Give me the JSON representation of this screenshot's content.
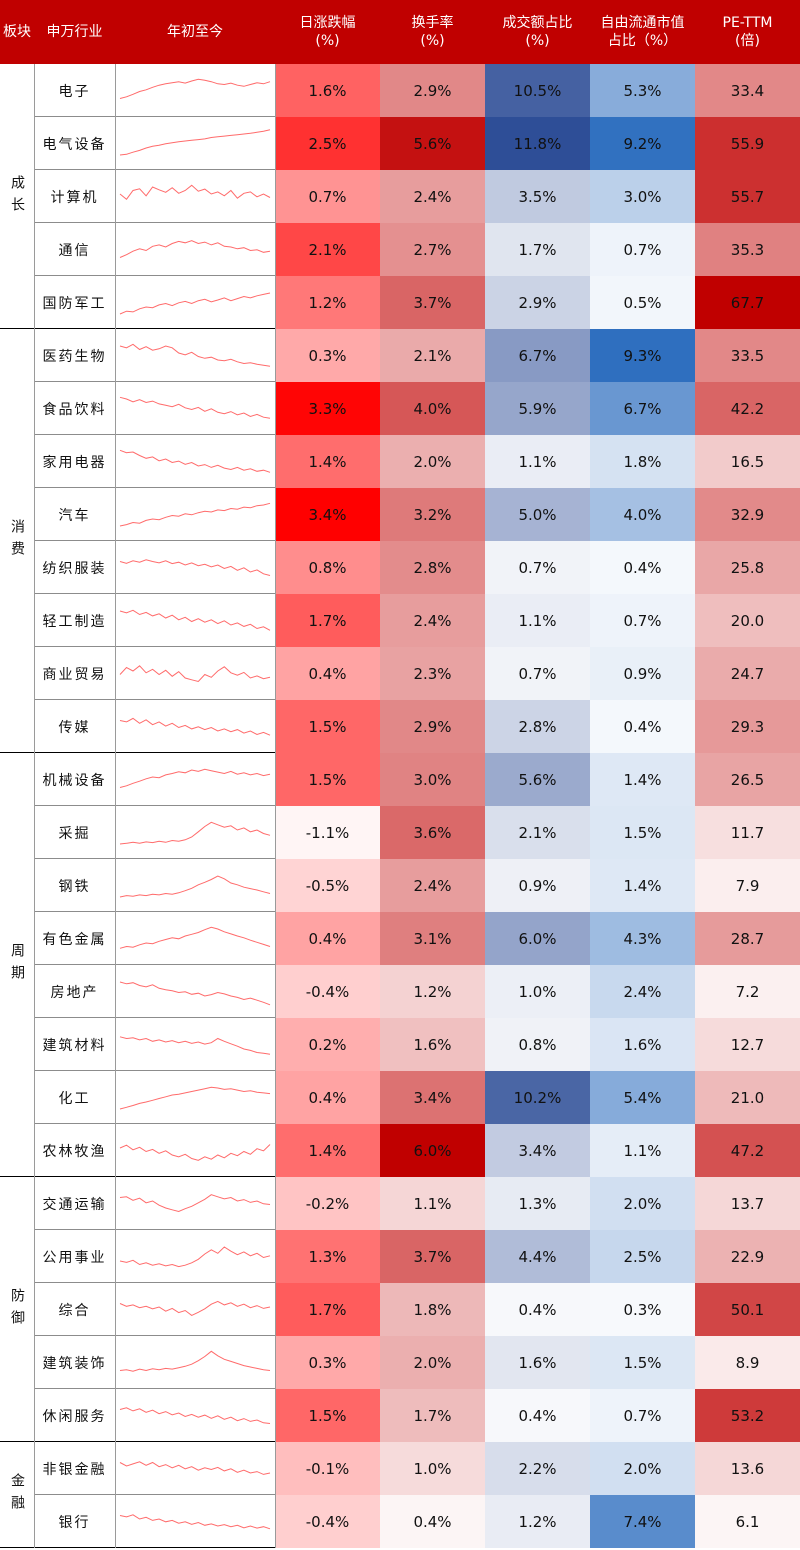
{
  "headers": {
    "section": "板块",
    "industry": "申万行业",
    "trend": "年初至今",
    "change_l1": "日涨跌幅",
    "change_l2": "(%)",
    "turnover_l1": "换手率",
    "turnover_l2": "(%)",
    "volume_l1": "成交额占比",
    "volume_l2": "(%)",
    "float_l1": "自由流通市值",
    "float_l2": "占比（%）",
    "pe_l1": "PE-TTM",
    "pe_l2": "(倍)"
  },
  "colors": {
    "header_bg": "#c00000",
    "red_max": "#ff0000",
    "red_dark": "#c00000",
    "blue_max": "#2f6fbf",
    "blue_dark": "#2e4e97",
    "sparkline": "#ff6b6b"
  },
  "sections": [
    {
      "name": "成长",
      "rows": 5
    },
    {
      "name": "消费",
      "rows": 8
    },
    {
      "name": "周期",
      "rows": 8
    },
    {
      "name": "防御",
      "rows": 5
    },
    {
      "name": "金融",
      "rows": 2
    }
  ],
  "chart_data": {
    "type": "table",
    "columns": [
      "日涨跌幅(%)",
      "换手率(%)",
      "成交额占比(%)",
      "自由流通市值占比（%）",
      "PE-TTM(倍)"
    ],
    "rows": [
      {
        "industry": "电子",
        "section": "成长",
        "change": "1.6%",
        "turnover": "2.9%",
        "volume_share": "10.5%",
        "float_share": "5.3%",
        "pe": "33.4",
        "trend": [
          0.3,
          0.35,
          0.42,
          0.5,
          0.55,
          0.62,
          0.68,
          0.72,
          0.75,
          0.78,
          0.74,
          0.8,
          0.85,
          0.82,
          0.78,
          0.72,
          0.7,
          0.74,
          0.68,
          0.65,
          0.7,
          0.75,
          0.72,
          0.78
        ]
      },
      {
        "industry": "电气设备",
        "section": "成长",
        "change": "2.5%",
        "turnover": "5.6%",
        "volume_share": "11.8%",
        "float_share": "9.2%",
        "pe": "55.9",
        "trend": [
          0.2,
          0.22,
          0.28,
          0.33,
          0.4,
          0.45,
          0.48,
          0.52,
          0.55,
          0.58,
          0.6,
          0.62,
          0.64,
          0.66,
          0.7,
          0.72,
          0.74,
          0.76,
          0.78,
          0.8,
          0.82,
          0.85,
          0.88,
          0.92
        ]
      },
      {
        "industry": "计算机",
        "section": "成长",
        "change": "0.7%",
        "turnover": "2.4%",
        "volume_share": "3.5%",
        "float_share": "3.0%",
        "pe": "55.7",
        "trend": [
          0.6,
          0.45,
          0.7,
          0.75,
          0.55,
          0.8,
          0.72,
          0.65,
          0.78,
          0.62,
          0.7,
          0.85,
          0.68,
          0.74,
          0.6,
          0.66,
          0.55,
          0.7,
          0.48,
          0.62,
          0.66,
          0.52,
          0.6,
          0.5
        ]
      },
      {
        "industry": "通信",
        "section": "成长",
        "change": "2.1%",
        "turnover": "2.7%",
        "volume_share": "1.7%",
        "float_share": "0.7%",
        "pe": "35.3",
        "trend": [
          0.3,
          0.38,
          0.48,
          0.55,
          0.5,
          0.62,
          0.66,
          0.6,
          0.7,
          0.76,
          0.72,
          0.78,
          0.7,
          0.74,
          0.66,
          0.72,
          0.62,
          0.6,
          0.55,
          0.58,
          0.5,
          0.52,
          0.45,
          0.48
        ]
      },
      {
        "industry": "国防军工",
        "section": "成长",
        "change": "1.2%",
        "turnover": "3.7%",
        "volume_share": "2.9%",
        "float_share": "0.5%",
        "pe": "67.7",
        "trend": [
          0.2,
          0.28,
          0.26,
          0.35,
          0.4,
          0.38,
          0.46,
          0.5,
          0.44,
          0.52,
          0.56,
          0.5,
          0.58,
          0.62,
          0.55,
          0.6,
          0.66,
          0.58,
          0.64,
          0.7,
          0.66,
          0.72,
          0.76,
          0.8
        ]
      },
      {
        "industry": "医药生物",
        "section": "消费",
        "change": "0.3%",
        "turnover": "2.1%",
        "volume_share": "6.7%",
        "float_share": "9.3%",
        "pe": "33.5",
        "trend": [
          0.8,
          0.75,
          0.85,
          0.7,
          0.78,
          0.68,
          0.72,
          0.8,
          0.75,
          0.6,
          0.55,
          0.62,
          0.5,
          0.45,
          0.48,
          0.4,
          0.38,
          0.42,
          0.35,
          0.3,
          0.32,
          0.28,
          0.25,
          0.22
        ]
      },
      {
        "industry": "食品饮料",
        "section": "消费",
        "change": "3.3%",
        "turnover": "4.0%",
        "volume_share": "5.9%",
        "float_share": "6.7%",
        "pe": "42.2",
        "trend": [
          0.85,
          0.8,
          0.72,
          0.78,
          0.7,
          0.74,
          0.66,
          0.62,
          0.58,
          0.65,
          0.55,
          0.5,
          0.56,
          0.45,
          0.52,
          0.42,
          0.38,
          0.44,
          0.35,
          0.4,
          0.3,
          0.36,
          0.28,
          0.25
        ]
      },
      {
        "industry": "家用电器",
        "section": "消费",
        "change": "1.4%",
        "turnover": "2.0%",
        "volume_share": "1.1%",
        "float_share": "1.8%",
        "pe": "16.5",
        "trend": [
          0.85,
          0.78,
          0.8,
          0.7,
          0.62,
          0.66,
          0.55,
          0.6,
          0.5,
          0.54,
          0.45,
          0.5,
          0.4,
          0.44,
          0.36,
          0.42,
          0.34,
          0.3,
          0.36,
          0.28,
          0.32,
          0.25,
          0.28,
          0.22
        ]
      },
      {
        "industry": "汽车",
        "section": "消费",
        "change": "3.4%",
        "turnover": "3.2%",
        "volume_share": "5.0%",
        "float_share": "4.0%",
        "pe": "32.9",
        "trend": [
          0.2,
          0.24,
          0.3,
          0.28,
          0.36,
          0.4,
          0.38,
          0.45,
          0.5,
          0.48,
          0.55,
          0.52,
          0.58,
          0.62,
          0.6,
          0.66,
          0.64,
          0.7,
          0.68,
          0.74,
          0.72,
          0.78,
          0.8,
          0.85
        ]
      },
      {
        "industry": "纺织服装",
        "section": "消费",
        "change": "0.8%",
        "turnover": "2.8%",
        "volume_share": "0.7%",
        "float_share": "0.4%",
        "pe": "25.8",
        "trend": [
          0.7,
          0.65,
          0.72,
          0.68,
          0.75,
          0.7,
          0.66,
          0.72,
          0.64,
          0.68,
          0.6,
          0.66,
          0.58,
          0.62,
          0.55,
          0.6,
          0.5,
          0.56,
          0.45,
          0.52,
          0.4,
          0.46,
          0.35,
          0.3
        ]
      },
      {
        "industry": "轻工制造",
        "section": "消费",
        "change": "1.7%",
        "turnover": "2.4%",
        "volume_share": "1.1%",
        "float_share": "0.7%",
        "pe": "20.0",
        "trend": [
          0.8,
          0.75,
          0.82,
          0.7,
          0.76,
          0.66,
          0.72,
          0.6,
          0.68,
          0.55,
          0.62,
          0.5,
          0.58,
          0.48,
          0.55,
          0.44,
          0.52,
          0.4,
          0.46,
          0.36,
          0.42,
          0.3,
          0.35,
          0.25
        ]
      },
      {
        "industry": "商业贸易",
        "section": "消费",
        "change": "0.4%",
        "turnover": "2.3%",
        "volume_share": "0.7%",
        "float_share": "0.9%",
        "pe": "24.7",
        "trend": [
          0.5,
          0.7,
          0.6,
          0.75,
          0.55,
          0.65,
          0.5,
          0.62,
          0.45,
          0.58,
          0.4,
          0.35,
          0.3,
          0.5,
          0.42,
          0.6,
          0.72,
          0.55,
          0.48,
          0.56,
          0.4,
          0.46,
          0.38,
          0.42
        ]
      },
      {
        "industry": "传媒",
        "section": "消费",
        "change": "1.5%",
        "turnover": "2.9%",
        "volume_share": "2.8%",
        "float_share": "0.4%",
        "pe": "29.3",
        "trend": [
          0.7,
          0.66,
          0.76,
          0.62,
          0.72,
          0.58,
          0.66,
          0.54,
          0.62,
          0.5,
          0.56,
          0.46,
          0.52,
          0.44,
          0.5,
          0.4,
          0.46,
          0.38,
          0.44,
          0.34,
          0.4,
          0.3,
          0.36,
          0.28
        ]
      },
      {
        "industry": "机械设备",
        "section": "周期",
        "change": "1.5%",
        "turnover": "3.0%",
        "volume_share": "5.6%",
        "float_share": "1.4%",
        "pe": "26.5",
        "trend": [
          0.3,
          0.35,
          0.42,
          0.48,
          0.55,
          0.6,
          0.58,
          0.66,
          0.7,
          0.75,
          0.72,
          0.8,
          0.76,
          0.82,
          0.78,
          0.74,
          0.7,
          0.76,
          0.68,
          0.72,
          0.66,
          0.7,
          0.64,
          0.68
        ]
      },
      {
        "industry": "采掘",
        "section": "周期",
        "change": "-1.1%",
        "turnover": "3.6%",
        "volume_share": "2.1%",
        "float_share": "1.5%",
        "pe": "11.7",
        "trend": [
          0.2,
          0.22,
          0.25,
          0.22,
          0.26,
          0.24,
          0.28,
          0.25,
          0.3,
          0.28,
          0.32,
          0.4,
          0.55,
          0.7,
          0.82,
          0.75,
          0.68,
          0.72,
          0.6,
          0.66,
          0.55,
          0.6,
          0.5,
          0.45
        ]
      },
      {
        "industry": "钢铁",
        "section": "周期",
        "change": "-0.5%",
        "turnover": "2.4%",
        "volume_share": "0.9%",
        "float_share": "1.4%",
        "pe": "7.9",
        "trend": [
          0.2,
          0.24,
          0.22,
          0.26,
          0.24,
          0.28,
          0.26,
          0.3,
          0.28,
          0.32,
          0.38,
          0.45,
          0.55,
          0.62,
          0.7,
          0.8,
          0.72,
          0.6,
          0.55,
          0.48,
          0.44,
          0.4,
          0.35,
          0.3
        ]
      },
      {
        "industry": "有色金属",
        "section": "周期",
        "change": "0.4%",
        "turnover": "3.1%",
        "volume_share": "6.0%",
        "float_share": "4.3%",
        "pe": "28.7",
        "trend": [
          0.25,
          0.3,
          0.28,
          0.35,
          0.4,
          0.38,
          0.45,
          0.5,
          0.55,
          0.52,
          0.6,
          0.65,
          0.7,
          0.78,
          0.85,
          0.8,
          0.72,
          0.66,
          0.6,
          0.55,
          0.48,
          0.42,
          0.36,
          0.3
        ]
      },
      {
        "industry": "房地产",
        "section": "周期",
        "change": "-0.4%",
        "turnover": "1.2%",
        "volume_share": "1.0%",
        "float_share": "2.4%",
        "pe": "7.2",
        "trend": [
          0.8,
          0.75,
          0.78,
          0.7,
          0.66,
          0.72,
          0.62,
          0.58,
          0.55,
          0.5,
          0.52,
          0.45,
          0.48,
          0.4,
          0.44,
          0.5,
          0.46,
          0.4,
          0.36,
          0.3,
          0.34,
          0.28,
          0.22,
          0.15
        ]
      },
      {
        "industry": "建筑材料",
        "section": "周期",
        "change": "0.2%",
        "turnover": "1.6%",
        "volume_share": "0.8%",
        "float_share": "1.6%",
        "pe": "12.7",
        "trend": [
          0.75,
          0.7,
          0.72,
          0.66,
          0.7,
          0.62,
          0.66,
          0.6,
          0.64,
          0.58,
          0.62,
          0.56,
          0.6,
          0.54,
          0.58,
          0.7,
          0.62,
          0.55,
          0.48,
          0.4,
          0.36,
          0.3,
          0.28,
          0.25
        ]
      },
      {
        "industry": "化工",
        "section": "周期",
        "change": "0.4%",
        "turnover": "3.4%",
        "volume_share": "10.2%",
        "float_share": "5.4%",
        "pe": "21.0",
        "trend": [
          0.2,
          0.25,
          0.3,
          0.36,
          0.4,
          0.45,
          0.5,
          0.55,
          0.6,
          0.62,
          0.66,
          0.7,
          0.74,
          0.78,
          0.82,
          0.8,
          0.76,
          0.78,
          0.74,
          0.7,
          0.72,
          0.68,
          0.66,
          0.64
        ]
      },
      {
        "industry": "农林牧渔",
        "section": "周期",
        "change": "1.4%",
        "turnover": "6.0%",
        "volume_share": "3.4%",
        "float_share": "1.1%",
        "pe": "47.2",
        "trend": [
          0.6,
          0.68,
          0.55,
          0.62,
          0.5,
          0.56,
          0.45,
          0.52,
          0.4,
          0.35,
          0.42,
          0.3,
          0.25,
          0.35,
          0.28,
          0.4,
          0.32,
          0.45,
          0.38,
          0.5,
          0.42,
          0.58,
          0.52,
          0.7
        ]
      },
      {
        "industry": "交通运输",
        "section": "防御",
        "change": "-0.2%",
        "turnover": "1.1%",
        "volume_share": "1.3%",
        "float_share": "2.0%",
        "pe": "13.7",
        "trend": [
          0.7,
          0.72,
          0.62,
          0.68,
          0.55,
          0.6,
          0.48,
          0.4,
          0.35,
          0.3,
          0.38,
          0.45,
          0.55,
          0.65,
          0.78,
          0.72,
          0.66,
          0.7,
          0.6,
          0.64,
          0.56,
          0.6,
          0.52,
          0.5
        ]
      },
      {
        "industry": "公用事业",
        "section": "防御",
        "change": "1.3%",
        "turnover": "3.7%",
        "volume_share": "4.4%",
        "float_share": "2.5%",
        "pe": "22.9",
        "trend": [
          0.4,
          0.36,
          0.42,
          0.3,
          0.35,
          0.28,
          0.32,
          0.26,
          0.3,
          0.24,
          0.28,
          0.35,
          0.45,
          0.6,
          0.72,
          0.62,
          0.8,
          0.68,
          0.58,
          0.66,
          0.55,
          0.62,
          0.5,
          0.55
        ]
      },
      {
        "industry": "综合",
        "section": "防御",
        "change": "1.7%",
        "turnover": "1.8%",
        "volume_share": "0.4%",
        "float_share": "0.3%",
        "pe": "50.1",
        "trend": [
          0.7,
          0.62,
          0.66,
          0.58,
          0.62,
          0.55,
          0.6,
          0.48,
          0.56,
          0.44,
          0.5,
          0.36,
          0.45,
          0.55,
          0.68,
          0.76,
          0.66,
          0.72,
          0.62,
          0.68,
          0.58,
          0.64,
          0.56,
          0.6
        ]
      },
      {
        "industry": "建筑装饰",
        "section": "防御",
        "change": "0.3%",
        "turnover": "2.0%",
        "volume_share": "1.6%",
        "float_share": "1.5%",
        "pe": "8.9",
        "trend": [
          0.3,
          0.32,
          0.28,
          0.34,
          0.3,
          0.35,
          0.32,
          0.36,
          0.34,
          0.38,
          0.42,
          0.48,
          0.58,
          0.7,
          0.85,
          0.72,
          0.62,
          0.56,
          0.5,
          0.44,
          0.4,
          0.36,
          0.32,
          0.3
        ]
      },
      {
        "industry": "休闲服务",
        "section": "防御",
        "change": "1.5%",
        "turnover": "1.7%",
        "volume_share": "0.4%",
        "float_share": "0.7%",
        "pe": "53.2",
        "trend": [
          0.7,
          0.75,
          0.66,
          0.72,
          0.62,
          0.68,
          0.58,
          0.64,
          0.55,
          0.6,
          0.5,
          0.56,
          0.48,
          0.54,
          0.45,
          0.52,
          0.42,
          0.48,
          0.38,
          0.44,
          0.36,
          0.4,
          0.32,
          0.3
        ]
      },
      {
        "industry": "非银金融",
        "section": "金融",
        "change": "-0.1%",
        "turnover": "1.0%",
        "volume_share": "2.2%",
        "float_share": "2.0%",
        "pe": "13.6",
        "trend": [
          0.7,
          0.6,
          0.66,
          0.72,
          0.62,
          0.7,
          0.58,
          0.64,
          0.55,
          0.62,
          0.52,
          0.58,
          0.48,
          0.55,
          0.5,
          0.56,
          0.46,
          0.52,
          0.42,
          0.48,
          0.4,
          0.44,
          0.36,
          0.4
        ]
      },
      {
        "industry": "银行",
        "section": "金融",
        "change": "-0.4%",
        "turnover": "0.4%",
        "volume_share": "1.2%",
        "float_share": "7.4%",
        "pe": "6.1",
        "trend": [
          0.7,
          0.66,
          0.72,
          0.6,
          0.65,
          0.56,
          0.6,
          0.52,
          0.56,
          0.48,
          0.52,
          0.45,
          0.5,
          0.42,
          0.46,
          0.4,
          0.44,
          0.38,
          0.42,
          0.35,
          0.4,
          0.34,
          0.38,
          0.32
        ]
      }
    ]
  }
}
